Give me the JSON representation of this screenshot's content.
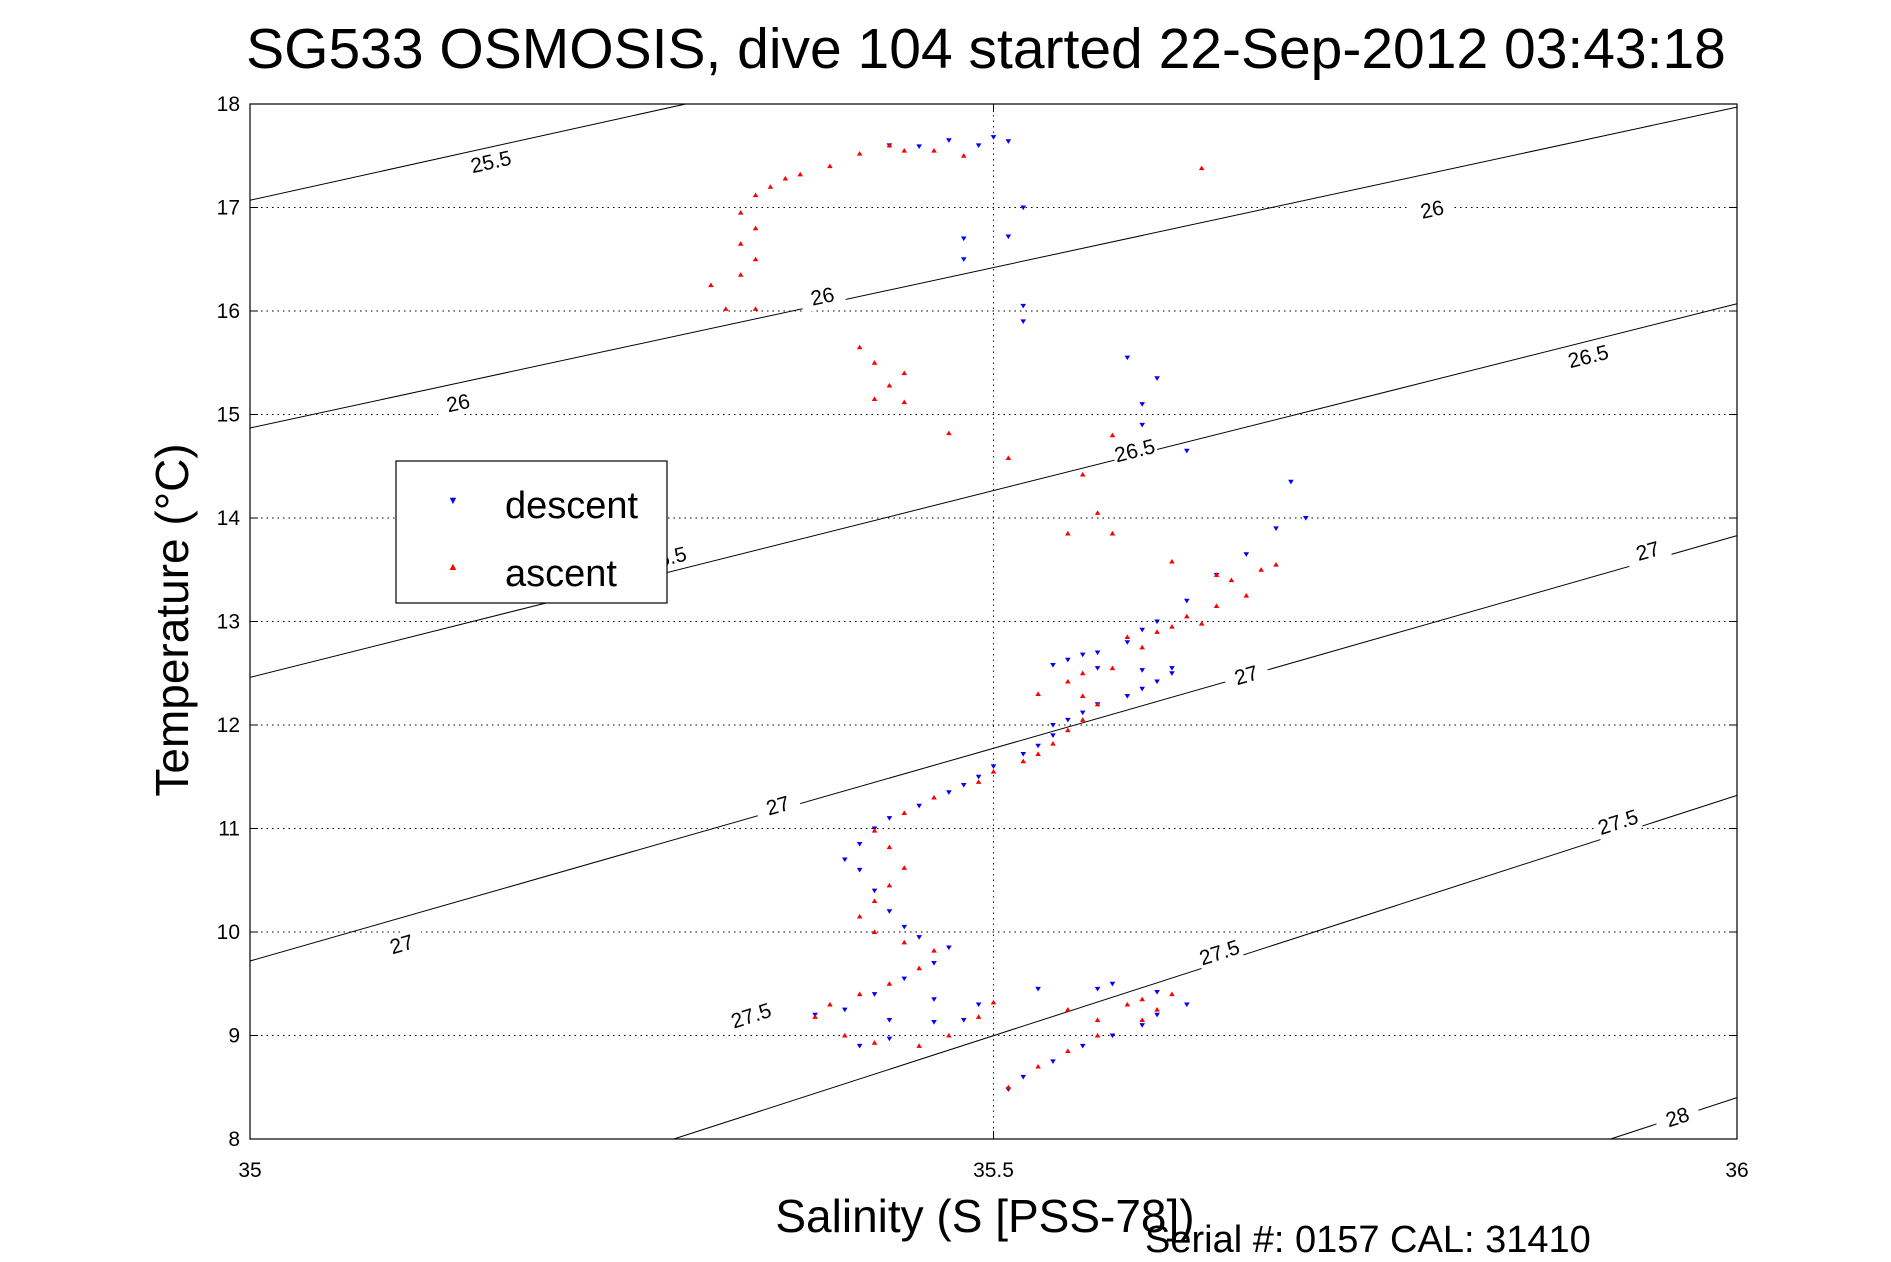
{
  "chart_data": {
    "type": "scatter",
    "title": "SG533 OSMOSIS, dive 104 started 22-Sep-2012 03:43:18",
    "xlabel": "Salinity (S [PSS-78])",
    "ylabel": "Temperature (°C)",
    "footer": "Serial #: 0157  CAL: 31410",
    "xlim": [
      35,
      36
    ],
    "ylim": [
      8,
      18
    ],
    "xticks": [
      35,
      35.5,
      36
    ],
    "xtick_labels": [
      "35",
      "35.5",
      "36"
    ],
    "yticks": [
      8,
      9,
      10,
      11,
      12,
      13,
      14,
      15,
      16,
      17,
      18
    ],
    "ytick_labels": [
      "8",
      "9",
      "10",
      "11",
      "12",
      "13",
      "14",
      "15",
      "16",
      "17",
      "18"
    ],
    "grid": "dotted",
    "legend_position": "middle-left",
    "series": [
      {
        "name": "descent",
        "marker": "triangle-down",
        "color": "#0000ff",
        "points": [
          [
            35.43,
            17.6
          ],
          [
            35.45,
            17.59
          ],
          [
            35.47,
            17.65
          ],
          [
            35.49,
            17.6
          ],
          [
            35.5,
            17.68
          ],
          [
            35.51,
            17.64
          ],
          [
            35.52,
            17.0
          ],
          [
            35.51,
            16.72
          ],
          [
            35.48,
            16.7
          ],
          [
            35.48,
            16.5
          ],
          [
            35.52,
            16.05
          ],
          [
            35.52,
            15.9
          ],
          [
            35.59,
            15.55
          ],
          [
            35.61,
            15.35
          ],
          [
            35.6,
            15.1
          ],
          [
            35.6,
            14.9
          ],
          [
            35.63,
            14.65
          ],
          [
            35.7,
            14.35
          ],
          [
            35.71,
            14.0
          ],
          [
            35.69,
            13.9
          ],
          [
            35.67,
            13.65
          ],
          [
            35.65,
            13.45
          ],
          [
            35.63,
            13.2
          ],
          [
            35.61,
            13.0
          ],
          [
            35.6,
            12.92
          ],
          [
            35.59,
            12.8
          ],
          [
            35.57,
            12.7
          ],
          [
            35.56,
            12.68
          ],
          [
            35.55,
            12.63
          ],
          [
            35.54,
            12.58
          ],
          [
            35.57,
            12.55
          ],
          [
            35.6,
            12.53
          ],
          [
            35.62,
            12.55
          ],
          [
            35.62,
            12.5
          ],
          [
            35.61,
            12.42
          ],
          [
            35.6,
            12.35
          ],
          [
            35.59,
            12.28
          ],
          [
            35.57,
            12.2
          ],
          [
            35.56,
            12.12
          ],
          [
            35.55,
            12.05
          ],
          [
            35.54,
            12.0
          ],
          [
            35.54,
            11.9
          ],
          [
            35.53,
            11.8
          ],
          [
            35.52,
            11.72
          ],
          [
            35.5,
            11.6
          ],
          [
            35.49,
            11.5
          ],
          [
            35.48,
            11.42
          ],
          [
            35.47,
            11.35
          ],
          [
            35.45,
            11.22
          ],
          [
            35.43,
            11.1
          ],
          [
            35.42,
            11.0
          ],
          [
            35.41,
            10.85
          ],
          [
            35.4,
            10.7
          ],
          [
            35.41,
            10.6
          ],
          [
            35.42,
            10.4
          ],
          [
            35.43,
            10.2
          ],
          [
            35.44,
            10.05
          ],
          [
            35.45,
            9.95
          ],
          [
            35.47,
            9.85
          ],
          [
            35.46,
            9.7
          ],
          [
            35.44,
            9.55
          ],
          [
            35.42,
            9.4
          ],
          [
            35.4,
            9.25
          ],
          [
            35.38,
            9.2
          ],
          [
            35.43,
            9.15
          ],
          [
            35.46,
            9.13
          ],
          [
            35.48,
            9.15
          ],
          [
            35.49,
            9.3
          ],
          [
            35.46,
            9.35
          ],
          [
            35.43,
            8.97
          ],
          [
            35.41,
            8.9
          ],
          [
            35.53,
            9.45
          ],
          [
            35.57,
            9.45
          ],
          [
            35.58,
            9.5
          ],
          [
            35.61,
            9.42
          ],
          [
            35.63,
            9.3
          ],
          [
            35.61,
            9.2
          ],
          [
            35.6,
            9.1
          ],
          [
            35.58,
            9.0
          ],
          [
            35.56,
            8.9
          ],
          [
            35.54,
            8.75
          ],
          [
            35.52,
            8.6
          ],
          [
            35.51,
            8.48
          ]
        ]
      },
      {
        "name": "ascent",
        "marker": "triangle-up",
        "color": "#ff0000",
        "points": [
          [
            35.43,
            17.6
          ],
          [
            35.44,
            17.55
          ],
          [
            35.46,
            17.55
          ],
          [
            35.48,
            17.5
          ],
          [
            35.41,
            17.52
          ],
          [
            35.39,
            17.4
          ],
          [
            35.37,
            17.32
          ],
          [
            35.36,
            17.28
          ],
          [
            35.35,
            17.2
          ],
          [
            35.34,
            17.12
          ],
          [
            35.33,
            16.95
          ],
          [
            35.34,
            16.8
          ],
          [
            35.33,
            16.65
          ],
          [
            35.34,
            16.5
          ],
          [
            35.33,
            16.35
          ],
          [
            35.31,
            16.25
          ],
          [
            35.32,
            16.02
          ],
          [
            35.34,
            16.02
          ],
          [
            35.41,
            15.65
          ],
          [
            35.42,
            15.5
          ],
          [
            35.44,
            15.4
          ],
          [
            35.43,
            15.28
          ],
          [
            35.42,
            15.15
          ],
          [
            35.44,
            15.12
          ],
          [
            35.47,
            14.82
          ],
          [
            35.51,
            14.58
          ],
          [
            35.58,
            14.8
          ],
          [
            35.56,
            14.42
          ],
          [
            35.57,
            14.05
          ],
          [
            35.55,
            13.85
          ],
          [
            35.58,
            13.85
          ],
          [
            35.62,
            13.58
          ],
          [
            35.65,
            13.45
          ],
          [
            35.66,
            13.4
          ],
          [
            35.68,
            13.5
          ],
          [
            35.69,
            13.55
          ],
          [
            35.67,
            13.25
          ],
          [
            35.65,
            13.15
          ],
          [
            35.63,
            13.05
          ],
          [
            35.64,
            12.98
          ],
          [
            35.62,
            12.95
          ],
          [
            35.61,
            12.9
          ],
          [
            35.59,
            12.85
          ],
          [
            35.6,
            12.75
          ],
          [
            35.58,
            12.55
          ],
          [
            35.56,
            12.5
          ],
          [
            35.55,
            12.42
          ],
          [
            35.53,
            12.3
          ],
          [
            35.56,
            12.28
          ],
          [
            35.57,
            12.2
          ],
          [
            35.56,
            12.05
          ],
          [
            35.55,
            11.95
          ],
          [
            35.54,
            11.82
          ],
          [
            35.53,
            11.72
          ],
          [
            35.52,
            11.65
          ],
          [
            35.5,
            11.55
          ],
          [
            35.49,
            11.45
          ],
          [
            35.46,
            11.3
          ],
          [
            35.44,
            11.15
          ],
          [
            35.42,
            10.98
          ],
          [
            35.43,
            10.82
          ],
          [
            35.44,
            10.62
          ],
          [
            35.43,
            10.45
          ],
          [
            35.42,
            10.3
          ],
          [
            35.41,
            10.15
          ],
          [
            35.42,
            10.0
          ],
          [
            35.44,
            9.9
          ],
          [
            35.46,
            9.82
          ],
          [
            35.45,
            9.65
          ],
          [
            35.43,
            9.5
          ],
          [
            35.41,
            9.4
          ],
          [
            35.39,
            9.3
          ],
          [
            35.38,
            9.18
          ],
          [
            35.4,
            9.0
          ],
          [
            35.42,
            8.93
          ],
          [
            35.45,
            8.9
          ],
          [
            35.47,
            9.0
          ],
          [
            35.49,
            9.18
          ],
          [
            35.5,
            9.32
          ],
          [
            35.55,
            9.25
          ],
          [
            35.57,
            9.15
          ],
          [
            35.59,
            9.3
          ],
          [
            35.6,
            9.35
          ],
          [
            35.62,
            9.4
          ],
          [
            35.61,
            9.25
          ],
          [
            35.6,
            9.15
          ],
          [
            35.57,
            9.0
          ],
          [
            35.55,
            8.85
          ],
          [
            35.53,
            8.7
          ],
          [
            35.51,
            8.5
          ],
          [
            35.64,
            17.38
          ]
        ]
      }
    ],
    "density_contours": [
      {
        "label": "25.5"
      },
      {
        "label": "26"
      },
      {
        "label": "26.5"
      },
      {
        "label": "27"
      },
      {
        "label": "27.5"
      },
      {
        "label": "28"
      }
    ]
  }
}
